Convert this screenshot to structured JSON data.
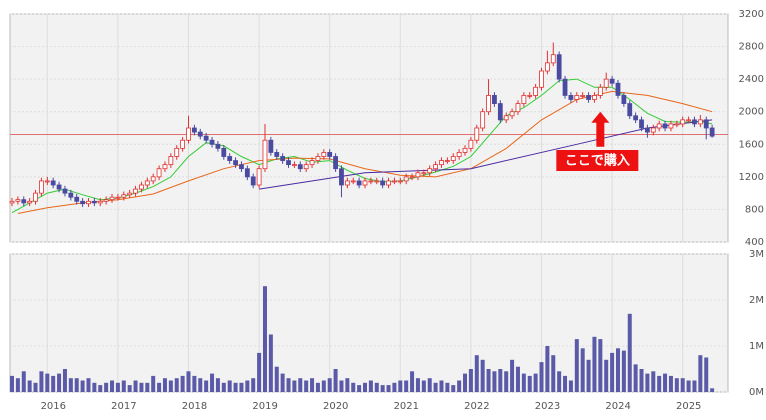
{
  "chart_data": {
    "type": "candlestick",
    "categories": [
      null,
      null,
      null,
      null,
      null,
      null,
      "2016",
      null,
      null,
      null,
      null,
      null,
      null,
      null,
      null,
      null,
      null,
      null,
      "2017",
      null,
      null,
      null,
      null,
      null,
      null,
      null,
      null,
      null,
      null,
      null,
      "2018",
      null,
      null,
      null,
      null,
      null,
      null,
      null,
      null,
      null,
      null,
      null,
      "2019",
      null,
      null,
      null,
      null,
      null,
      null,
      null,
      null,
      null,
      null,
      null,
      "2020",
      null,
      null,
      null,
      null,
      null,
      null,
      null,
      null,
      null,
      null,
      null,
      "2021",
      null,
      null,
      null,
      null,
      null,
      null,
      null,
      null,
      null,
      null,
      null,
      "2022",
      null,
      null,
      null,
      null,
      null,
      null,
      null,
      null,
      null,
      null,
      null,
      "2023",
      null,
      null,
      null,
      null,
      null,
      null,
      null,
      null,
      null,
      null,
      null,
      "2024",
      null,
      null,
      null,
      null,
      null,
      null,
      null,
      null,
      null,
      null,
      null,
      "2025",
      null,
      null,
      null,
      null,
      null
    ],
    "ohlc": [
      [
        880,
        940,
        840,
        900
      ],
      [
        900,
        960,
        860,
        920
      ],
      [
        920,
        960,
        840,
        880
      ],
      [
        880,
        940,
        840,
        900
      ],
      [
        900,
        1040,
        860,
        1000
      ],
      [
        1000,
        1190,
        960,
        1150
      ],
      [
        1150,
        1200,
        1100,
        1150
      ],
      [
        1150,
        1190,
        1060,
        1100
      ],
      [
        1100,
        1140,
        1010,
        1050
      ],
      [
        1050,
        1090,
        960,
        1000
      ],
      [
        1000,
        1040,
        910,
        950
      ],
      [
        950,
        990,
        860,
        900
      ],
      [
        900,
        940,
        830,
        870
      ],
      [
        870,
        940,
        830,
        900
      ],
      [
        900,
        940,
        840,
        880
      ],
      [
        880,
        940,
        840,
        900
      ],
      [
        900,
        960,
        860,
        920
      ],
      [
        920,
        990,
        880,
        950
      ],
      [
        950,
        990,
        910,
        950
      ],
      [
        950,
        1020,
        910,
        980
      ],
      [
        980,
        1040,
        940,
        1000
      ],
      [
        1000,
        1090,
        960,
        1050
      ],
      [
        1050,
        1140,
        1010,
        1100
      ],
      [
        1100,
        1190,
        1060,
        1150
      ],
      [
        1150,
        1240,
        1110,
        1200
      ],
      [
        1200,
        1340,
        1160,
        1300
      ],
      [
        1300,
        1390,
        1260,
        1350
      ],
      [
        1350,
        1490,
        1310,
        1450
      ],
      [
        1450,
        1590,
        1410,
        1550
      ],
      [
        1550,
        1690,
        1510,
        1650
      ],
      [
        1650,
        1950,
        1610,
        1800
      ],
      [
        1800,
        1840,
        1710,
        1750
      ],
      [
        1750,
        1790,
        1660,
        1700
      ],
      [
        1700,
        1740,
        1610,
        1650
      ],
      [
        1650,
        1690,
        1560,
        1600
      ],
      [
        1600,
        1640,
        1510,
        1550
      ],
      [
        1550,
        1590,
        1410,
        1450
      ],
      [
        1450,
        1490,
        1360,
        1400
      ],
      [
        1400,
        1440,
        1310,
        1350
      ],
      [
        1350,
        1390,
        1260,
        1300
      ],
      [
        1300,
        1340,
        1160,
        1200
      ],
      [
        1200,
        1240,
        1060,
        1100
      ],
      [
        1100,
        1340,
        1060,
        1300
      ],
      [
        1300,
        1850,
        1260,
        1650
      ],
      [
        1650,
        1690,
        1460,
        1500
      ],
      [
        1500,
        1540,
        1410,
        1450
      ],
      [
        1450,
        1490,
        1360,
        1400
      ],
      [
        1400,
        1440,
        1310,
        1350
      ],
      [
        1350,
        1390,
        1310,
        1350
      ],
      [
        1350,
        1390,
        1260,
        1300
      ],
      [
        1300,
        1390,
        1260,
        1350
      ],
      [
        1350,
        1440,
        1310,
        1400
      ],
      [
        1400,
        1490,
        1360,
        1450
      ],
      [
        1450,
        1540,
        1410,
        1500
      ],
      [
        1500,
        1540,
        1410,
        1450
      ],
      [
        1450,
        1490,
        1260,
        1300
      ],
      [
        1300,
        1340,
        950,
        1100
      ],
      [
        1100,
        1190,
        1060,
        1150
      ],
      [
        1150,
        1190,
        1110,
        1150
      ],
      [
        1150,
        1190,
        1060,
        1100
      ],
      [
        1100,
        1190,
        1060,
        1150
      ],
      [
        1150,
        1190,
        1110,
        1150
      ],
      [
        1150,
        1190,
        1110,
        1150
      ],
      [
        1150,
        1190,
        1060,
        1100
      ],
      [
        1100,
        1190,
        1060,
        1150
      ],
      [
        1150,
        1190,
        1110,
        1150
      ],
      [
        1150,
        1190,
        1110,
        1150
      ],
      [
        1150,
        1240,
        1110,
        1200
      ],
      [
        1200,
        1240,
        1160,
        1200
      ],
      [
        1200,
        1290,
        1160,
        1250
      ],
      [
        1250,
        1290,
        1210,
        1250
      ],
      [
        1250,
        1340,
        1210,
        1300
      ],
      [
        1300,
        1390,
        1260,
        1350
      ],
      [
        1350,
        1440,
        1310,
        1400
      ],
      [
        1400,
        1440,
        1360,
        1400
      ],
      [
        1400,
        1490,
        1360,
        1450
      ],
      [
        1450,
        1540,
        1410,
        1500
      ],
      [
        1500,
        1590,
        1460,
        1550
      ],
      [
        1550,
        1690,
        1510,
        1650
      ],
      [
        1650,
        1840,
        1610,
        1800
      ],
      [
        1800,
        2040,
        1760,
        2000
      ],
      [
        2000,
        2400,
        1960,
        2200
      ],
      [
        2200,
        2240,
        2060,
        2100
      ],
      [
        2100,
        2140,
        1860,
        1900
      ],
      [
        1900,
        1990,
        1860,
        1950
      ],
      [
        1950,
        2040,
        1910,
        2000
      ],
      [
        2000,
        2140,
        1960,
        2100
      ],
      [
        2100,
        2240,
        2060,
        2200
      ],
      [
        2200,
        2240,
        2160,
        2200
      ],
      [
        2200,
        2340,
        2160,
        2300
      ],
      [
        2300,
        2540,
        2260,
        2500
      ],
      [
        2500,
        2750,
        2460,
        2600
      ],
      [
        2600,
        2850,
        2560,
        2700
      ],
      [
        2700,
        2740,
        2360,
        2400
      ],
      [
        2400,
        2440,
        2160,
        2200
      ],
      [
        2200,
        2240,
        2110,
        2150
      ],
      [
        2150,
        2240,
        2110,
        2200
      ],
      [
        2200,
        2240,
        2160,
        2200
      ],
      [
        2200,
        2240,
        2110,
        2150
      ],
      [
        2150,
        2240,
        2110,
        2200
      ],
      [
        2200,
        2340,
        2160,
        2300
      ],
      [
        2300,
        2480,
        2260,
        2400
      ],
      [
        2400,
        2440,
        2310,
        2350
      ],
      [
        2350,
        2390,
        2160,
        2200
      ],
      [
        2200,
        2240,
        2060,
        2100
      ],
      [
        2100,
        2140,
        1910,
        1950
      ],
      [
        1950,
        1990,
        1860,
        1900
      ],
      [
        1900,
        1940,
        1760,
        1800
      ],
      [
        1800,
        1840,
        1680,
        1750
      ],
      [
        1750,
        1840,
        1710,
        1800
      ],
      [
        1800,
        1890,
        1760,
        1850
      ],
      [
        1850,
        1890,
        1760,
        1800
      ],
      [
        1800,
        1890,
        1760,
        1850
      ],
      [
        1850,
        1890,
        1810,
        1850
      ],
      [
        1850,
        1940,
        1810,
        1900
      ],
      [
        1900,
        1940,
        1860,
        1900
      ],
      [
        1900,
        1940,
        1810,
        1850
      ],
      [
        1850,
        1960,
        1810,
        1900
      ],
      [
        1900,
        1940,
        1660,
        1800
      ],
      [
        1800,
        1840,
        1680,
        1700
      ]
    ],
    "up_color": "#e03030",
    "down_color": "#4a4aa0",
    "volume": [
      350000,
      300000,
      450000,
      250000,
      200000,
      450000,
      400000,
      350000,
      400000,
      500000,
      300000,
      300000,
      250000,
      300000,
      200000,
      150000,
      200000,
      250000,
      200000,
      250000,
      150000,
      250000,
      200000,
      200000,
      350000,
      200000,
      300000,
      250000,
      300000,
      350000,
      450000,
      350000,
      300000,
      250000,
      400000,
      300000,
      200000,
      250000,
      200000,
      200000,
      250000,
      300000,
      850000,
      2300000,
      1250000,
      550000,
      400000,
      300000,
      250000,
      300000,
      250000,
      300000,
      200000,
      250000,
      300000,
      500000,
      250000,
      300000,
      200000,
      150000,
      200000,
      250000,
      200000,
      150000,
      150000,
      200000,
      250000,
      250000,
      450000,
      300000,
      250000,
      300000,
      200000,
      250000,
      200000,
      150000,
      250000,
      400000,
      500000,
      800000,
      700000,
      500000,
      450000,
      500000,
      450000,
      700000,
      550000,
      400000,
      350000,
      400000,
      650000,
      1000000,
      800000,
      450000,
      350000,
      250000,
      1150000,
      950000,
      700000,
      1200000,
      1150000,
      700000,
      850000,
      950000,
      900000,
      1700000,
      600000,
      500000,
      400000,
      450000,
      350000,
      400000,
      350000,
      300000,
      300000,
      250000,
      250000,
      800000,
      750000,
      80000
    ],
    "volume_color": "#5a5aa8",
    "ma": [
      {
        "color": "#33cc33",
        "x": [
          0,
          3,
          6,
          9,
          12,
          15,
          18,
          21,
          24,
          27,
          30,
          33,
          36,
          39,
          42,
          45,
          48,
          51,
          54,
          57,
          60,
          63,
          66,
          69,
          72,
          75,
          78,
          81,
          84,
          87,
          90,
          93,
          96,
          99,
          102,
          105,
          108,
          111,
          114,
          117,
          119
        ],
        "values": [
          760,
          880,
          1000,
          1050,
          980,
          920,
          940,
          1000,
          1080,
          1200,
          1450,
          1620,
          1580,
          1450,
          1350,
          1420,
          1450,
          1380,
          1400,
          1280,
          1180,
          1140,
          1150,
          1200,
          1260,
          1330,
          1450,
          1700,
          1950,
          2050,
          2200,
          2380,
          2400,
          2300,
          2300,
          2150,
          1980,
          1880,
          1870,
          1880,
          1850
        ]
      },
      {
        "color": "#e8661a",
        "x": [
          1,
          6,
          12,
          18,
          24,
          30,
          36,
          42,
          48,
          54,
          60,
          66,
          72,
          78,
          84,
          90,
          96,
          102,
          108,
          114,
          119
        ],
        "values": [
          750,
          820,
          880,
          920,
          990,
          1150,
          1300,
          1400,
          1430,
          1420,
          1300,
          1220,
          1200,
          1300,
          1550,
          1900,
          2150,
          2250,
          2200,
          2100,
          2000
        ]
      },
      {
        "color": "#4b2aa0",
        "x": [
          42,
          60,
          78,
          96,
          108,
          119
        ],
        "values": [
          1050,
          1250,
          1300,
          1600,
          1800,
          1900
        ]
      }
    ],
    "hline": 1720,
    "hline_color": "#e07070",
    "annotation": {
      "text": "ここで購入",
      "x": 100,
      "arrow_tip": 2000,
      "arrow_base": 1570
    },
    "ylim": [
      400,
      3200
    ],
    "yticks": [
      400,
      800,
      1200,
      1600,
      2000,
      2400,
      2800,
      3200
    ],
    "y2lim": [
      0,
      3000000
    ],
    "y2ticks": [
      {
        "value": 0,
        "label": "0M"
      },
      {
        "value": 1000000,
        "label": "1M"
      },
      {
        "value": 2000000,
        "label": "2M"
      },
      {
        "value": 3000000,
        "label": "3M"
      }
    ],
    "grid": true
  }
}
